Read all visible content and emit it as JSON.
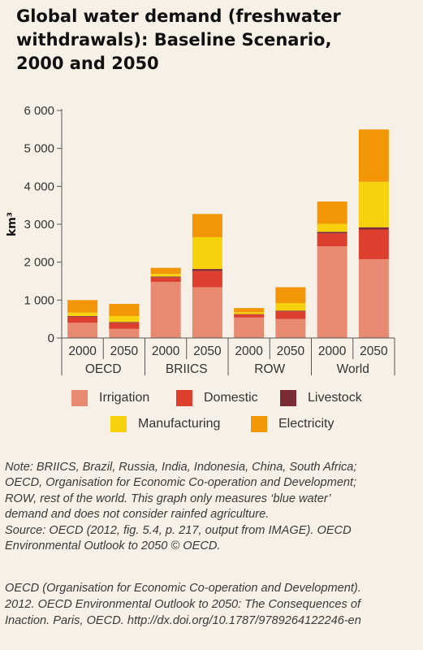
{
  "title_lines": [
    "Global water demand (freshwater",
    "withdrawals): Baseline Scenario,",
    "2000 and 2050"
  ],
  "chart_data": {
    "type": "bar",
    "stacked": true,
    "ylabel": "km³",
    "ylim": [
      0,
      6000
    ],
    "yticks": [
      0,
      1000,
      2000,
      3000,
      4000,
      5000,
      6000
    ],
    "ytick_labels": [
      "0",
      "1 000",
      "2 000",
      "3 000",
      "4 000",
      "5 000",
      "6 000"
    ],
    "groups": [
      "OECD",
      "BRIICS",
      "ROW",
      "World"
    ],
    "categories": [
      "2000",
      "2050",
      "2000",
      "2050",
      "2000",
      "2050",
      "2000",
      "2050"
    ],
    "series": [
      {
        "name": "Irrigation",
        "color": "#e88a72",
        "values": [
          400,
          240,
          1480,
          1340,
          540,
          500,
          2420,
          2080
        ]
      },
      {
        "name": "Domestic",
        "color": "#dc3f2e",
        "values": [
          160,
          160,
          120,
          430,
          80,
          200,
          340,
          780
        ]
      },
      {
        "name": "Livestock",
        "color": "#7a2b34",
        "values": [
          20,
          20,
          20,
          50,
          10,
          20,
          40,
          60
        ]
      },
      {
        "name": "Manufacturing",
        "color": "#f7d10c",
        "values": [
          90,
          160,
          70,
          840,
          50,
          200,
          210,
          1200
        ]
      },
      {
        "name": "Electricity",
        "color": "#f29606",
        "values": [
          330,
          320,
          160,
          610,
          110,
          420,
          590,
          1380
        ]
      }
    ],
    "grid": false,
    "legend_position": "bottom"
  },
  "note_lines": [
    "Note: BRIICS, Brazil, Russia, India, Indonesia, China, South Africa;",
    "OECD, Organisation for Economic Co-operation and Development;",
    "ROW, rest of the world. This graph only measures ‘blue water’",
    "demand and does not consider rainfed agriculture.",
    "Source: OECD (2012, fig. 5.4, p. 217, output from IMAGE). OECD",
    "Environmental Outlook to 2050 © OECD."
  ],
  "reference_lines": [
    "OECD (Organisation for Economic Co-operation and Development).",
    "2012. OECD Environmental Outlook to 2050: The Consequences of",
    "Inaction. Paris, OECD. http://dx.doi.org/10.1787/9789264122246-en"
  ]
}
